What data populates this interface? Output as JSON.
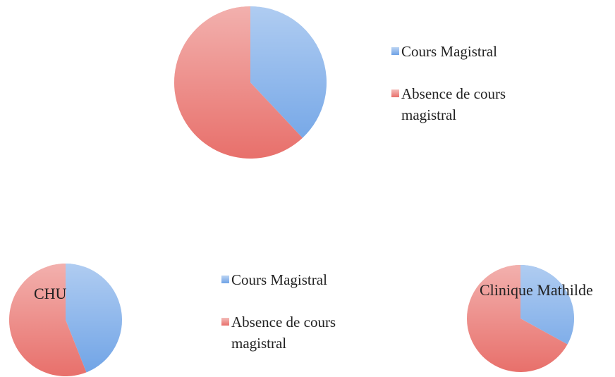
{
  "categories": [
    "Cours Magistral",
    "Absence de cours magistral"
  ],
  "colors": [
    "#6fa3e6",
    "#e8706b"
  ],
  "chart_data": [
    {
      "type": "pie",
      "values": [
        38,
        62
      ],
      "legend": true
    },
    {
      "type": "pie",
      "title": "CHU",
      "values": [
        44,
        56
      ],
      "legend": true
    },
    {
      "type": "pie",
      "title": "Clinique Mathilde",
      "values": [
        33,
        67
      ],
      "legend": false
    }
  ]
}
